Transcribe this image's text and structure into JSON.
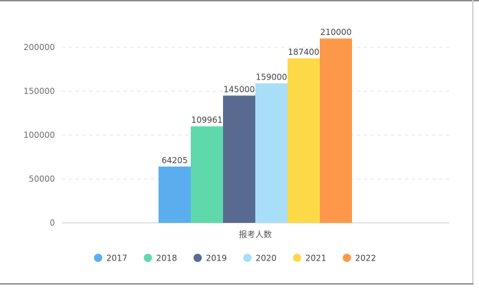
{
  "chart_data": {
    "type": "bar",
    "categories": [
      "报考人数"
    ],
    "series": [
      {
        "name": "2017",
        "values": [
          64205
        ],
        "color": "#5aaef0"
      },
      {
        "name": "2018",
        "values": [
          109961
        ],
        "color": "#5fd8ab"
      },
      {
        "name": "2019",
        "values": [
          145000
        ],
        "color": "#596a90"
      },
      {
        "name": "2020",
        "values": [
          159000
        ],
        "color": "#a8def8"
      },
      {
        "name": "2021",
        "values": [
          187400
        ],
        "color": "#fdd947"
      },
      {
        "name": "2022",
        "values": [
          210000
        ],
        "color": "#fd984a"
      }
    ],
    "yticks": [
      "0",
      "50000",
      "100000",
      "150000",
      "200000"
    ],
    "ylim": [
      0,
      200000
    ],
    "grid": "horizontal-dashed",
    "legend": "bottom",
    "data_labels": true,
    "title": "",
    "xlabel": "",
    "ylabel": ""
  }
}
